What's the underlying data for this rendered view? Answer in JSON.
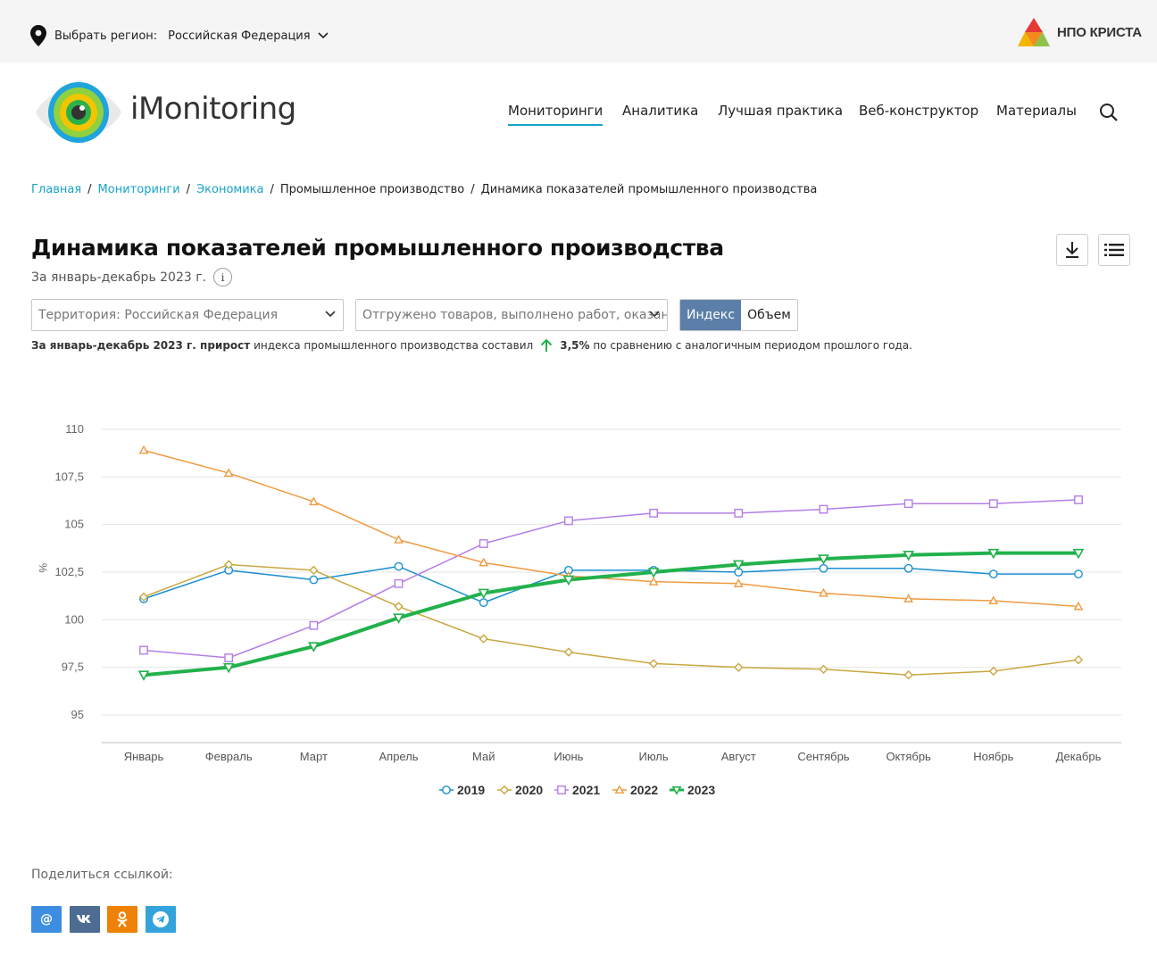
{
  "topbar": {
    "region_label": "Выбрать регион:",
    "region_value": "Российская Федерация",
    "partner_logo_text": "НПО КРИСТА"
  },
  "header": {
    "brand": "iMonitoring",
    "nav": [
      {
        "label": "Мониторинги",
        "active": true
      },
      {
        "label": "Аналитика",
        "active": false
      },
      {
        "label": "Лучшая практика",
        "active": false
      },
      {
        "label": "Веб-конструктор",
        "active": false
      },
      {
        "label": "Материалы",
        "active": false
      }
    ],
    "search_icon": "search-icon"
  },
  "breadcrumb": [
    {
      "label": "Главная",
      "link": true
    },
    {
      "label": "Мониторинги",
      "link": true
    },
    {
      "label": "Экономика",
      "link": true
    },
    {
      "label": "Промышленное производство",
      "link": false
    },
    {
      "label": "Динамика показателей промышленного производства",
      "link": false
    }
  ],
  "page": {
    "title": "Динамика показателей промышленного производства",
    "period": "За январь-декабрь 2023 г.",
    "info_glyph": "i"
  },
  "filters": {
    "territory": "Территория: Российская  Федерация",
    "indicator": "Отгружено товаров, выполнено работ, оказанных услуг",
    "toggle": [
      {
        "label": "Индекс",
        "active": true
      },
      {
        "label": "Объем",
        "active": false
      }
    ]
  },
  "summary": {
    "bold_part": "За январь-декабрь 2023 г. прирост",
    "text_part": "индекса промышленного производства составил",
    "value": "3,5%",
    "tail": "по сравнению с аналогичным периодом прошлого года."
  },
  "chart_data": {
    "type": "line",
    "title": "",
    "xlabel": "",
    "ylabel": "%",
    "ylim": [
      95,
      110
    ],
    "yticks": [
      95,
      97.5,
      100,
      102.5,
      105,
      107.5,
      110
    ],
    "ytick_labels": [
      "95",
      "97,5",
      "100",
      "102,5",
      "105",
      "107,5",
      "110"
    ],
    "grid": true,
    "legend_position": "bottom",
    "categories": [
      "Январь",
      "Февраль",
      "Март",
      "Апрель",
      "Май",
      "Июнь",
      "Июль",
      "Август",
      "Сентябрь",
      "Октябрь",
      "Ноябрь",
      "Декабрь"
    ],
    "series": [
      {
        "name": "2019",
        "color": "#1a8fcf",
        "marker": "circle",
        "width": 1.5,
        "values": [
          101.1,
          102.6,
          102.1,
          102.8,
          100.9,
          102.6,
          102.6,
          102.5,
          102.7,
          102.7,
          102.4,
          102.4
        ]
      },
      {
        "name": "2020",
        "color": "#c9a73e",
        "marker": "diamond",
        "width": 1.5,
        "values": [
          101.2,
          102.9,
          102.6,
          100.7,
          99.0,
          98.3,
          97.7,
          97.5,
          97.4,
          97.1,
          97.3,
          97.9
        ]
      },
      {
        "name": "2021",
        "color": "#b57de8",
        "marker": "square",
        "width": 1.5,
        "values": [
          98.4,
          98.0,
          99.7,
          101.9,
          104.0,
          105.2,
          105.6,
          105.6,
          105.8,
          106.1,
          106.1,
          106.3
        ]
      },
      {
        "name": "2022",
        "color": "#f09a40",
        "marker": "triangle-up",
        "width": 1.5,
        "values": [
          108.9,
          107.7,
          106.2,
          104.2,
          103.0,
          102.3,
          102.0,
          101.9,
          101.4,
          101.1,
          101.0,
          100.7
        ]
      },
      {
        "name": "2023",
        "color": "#22b14c",
        "marker": "triangle-down",
        "width": 4,
        "values": [
          97.1,
          97.5,
          98.6,
          100.1,
          101.4,
          102.1,
          102.5,
          102.9,
          103.2,
          103.4,
          103.5,
          103.5
        ]
      }
    ]
  },
  "share": {
    "label": "Поделиться ссылкой:",
    "buttons": [
      {
        "name": "mail",
        "glyph": "@",
        "color": "#3d8ee0"
      },
      {
        "name": "vk",
        "glyph": "vk",
        "color": "#4c6c91"
      },
      {
        "name": "ok",
        "glyph": "ok",
        "color": "#ee8208"
      },
      {
        "name": "telegram",
        "glyph": "tg",
        "color": "#34a3dc"
      }
    ]
  }
}
